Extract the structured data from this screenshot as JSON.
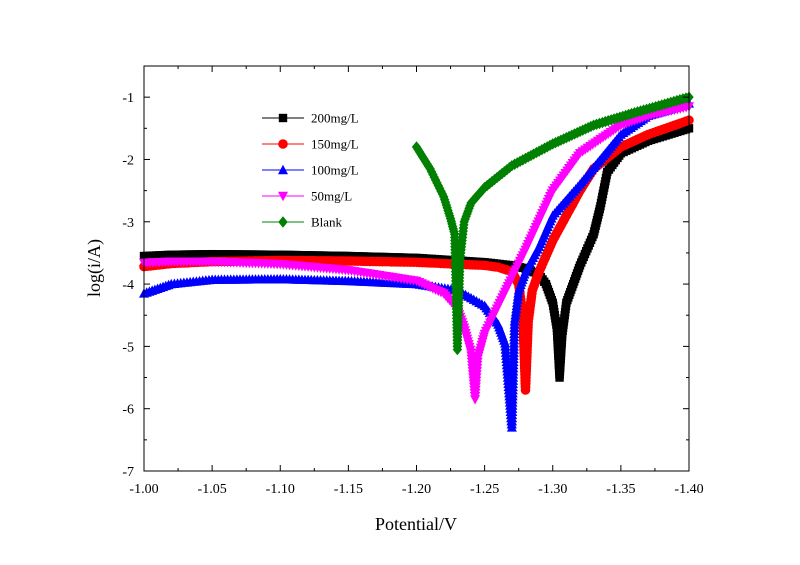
{
  "chart_data": {
    "type": "line",
    "title": "",
    "xlabel": "Potential/V",
    "ylabel": "log(i/A)",
    "xlim": [
      -1.0,
      -1.4
    ],
    "ylim": [
      -7,
      -0.5
    ],
    "x_reversed": true,
    "x_ticks": [
      -1.0,
      -1.05,
      -1.1,
      -1.15,
      -1.2,
      -1.25,
      -1.3,
      -1.35,
      -1.4
    ],
    "x_tick_labels": [
      "-1.00",
      "-1.05",
      "-1.10",
      "-1.15",
      "-1.20",
      "-1.25",
      "-1.30",
      "-1.35",
      "-1.40"
    ],
    "y_ticks": [
      -7,
      -6,
      -5,
      -4,
      -3,
      -2,
      -1
    ],
    "y_tick_labels": [
      "-7",
      "-6",
      "-5",
      "-4",
      "-3",
      "-2",
      "-1"
    ],
    "grid": false,
    "legend_position": "top-left",
    "series": [
      {
        "name": "200mg/L",
        "color": "#000000",
        "marker": "square",
        "x": [
          -1.0,
          -1.02,
          -1.05,
          -1.1,
          -1.15,
          -1.2,
          -1.25,
          -1.27,
          -1.28,
          -1.29,
          -1.295,
          -1.3,
          -1.303,
          -1.305,
          -1.307,
          -1.31,
          -1.315,
          -1.32,
          -1.33,
          -1.335,
          -1.34,
          -1.35,
          -1.37,
          -1.4
        ],
        "y": [
          -3.55,
          -3.53,
          -3.52,
          -3.53,
          -3.55,
          -3.58,
          -3.65,
          -3.7,
          -3.75,
          -3.85,
          -4.0,
          -4.3,
          -4.7,
          -5.5,
          -4.8,
          -4.3,
          -4.0,
          -3.7,
          -3.2,
          -2.75,
          -2.2,
          -1.9,
          -1.7,
          -1.5
        ]
      },
      {
        "name": "150mg/L",
        "color": "#ff0000",
        "marker": "circle",
        "x": [
          -1.0,
          -1.02,
          -1.05,
          -1.1,
          -1.15,
          -1.2,
          -1.25,
          -1.26,
          -1.27,
          -1.275,
          -1.278,
          -1.28,
          -1.282,
          -1.285,
          -1.29,
          -1.3,
          -1.31,
          -1.32,
          -1.33,
          -1.35,
          -1.37,
          -1.4
        ],
        "y": [
          -3.72,
          -3.67,
          -3.64,
          -3.62,
          -3.63,
          -3.65,
          -3.7,
          -3.73,
          -3.8,
          -4.0,
          -4.5,
          -5.7,
          -4.6,
          -4.1,
          -3.8,
          -3.3,
          -2.9,
          -2.5,
          -2.15,
          -1.8,
          -1.6,
          -1.37
        ]
      },
      {
        "name": "100mg/L",
        "color": "#0000ff",
        "marker": "triangle-up",
        "x": [
          -1.0,
          -1.02,
          -1.05,
          -1.1,
          -1.15,
          -1.2,
          -1.23,
          -1.25,
          -1.26,
          -1.265,
          -1.27,
          -1.272,
          -1.275,
          -1.28,
          -1.29,
          -1.3,
          -1.32,
          -1.35,
          -1.37,
          -1.4
        ],
        "y": [
          -4.15,
          -4.0,
          -3.93,
          -3.92,
          -3.95,
          -4.0,
          -4.1,
          -4.35,
          -4.65,
          -4.95,
          -6.3,
          -4.6,
          -4.1,
          -3.8,
          -3.4,
          -2.9,
          -2.4,
          -1.6,
          -1.3,
          -1.1
        ]
      },
      {
        "name": "50mg/L",
        "color": "#ff00ff",
        "marker": "triangle-down",
        "x": [
          -1.0,
          -1.02,
          -1.05,
          -1.1,
          -1.15,
          -1.2,
          -1.22,
          -1.23,
          -1.235,
          -1.24,
          -1.243,
          -1.245,
          -1.25,
          -1.26,
          -1.27,
          -1.28,
          -1.3,
          -1.32,
          -1.35,
          -1.37,
          -1.4
        ],
        "y": [
          -3.66,
          -3.64,
          -3.64,
          -3.68,
          -3.78,
          -3.95,
          -4.15,
          -4.4,
          -4.7,
          -5.1,
          -5.85,
          -5.2,
          -4.8,
          -4.35,
          -3.9,
          -3.45,
          -2.5,
          -1.9,
          -1.45,
          -1.3,
          -1.15
        ]
      },
      {
        "name": "Blank",
        "color": "#008000",
        "marker": "diamond",
        "x": [
          -1.2,
          -1.21,
          -1.22,
          -1.225,
          -1.228,
          -1.23,
          -1.232,
          -1.235,
          -1.24,
          -1.25,
          -1.27,
          -1.3,
          -1.33,
          -1.36,
          -1.4
        ],
        "y": [
          -1.8,
          -2.15,
          -2.6,
          -2.95,
          -3.2,
          -5.05,
          -3.6,
          -3.0,
          -2.7,
          -2.45,
          -2.1,
          -1.75,
          -1.45,
          -1.25,
          -1.0
        ]
      }
    ]
  }
}
